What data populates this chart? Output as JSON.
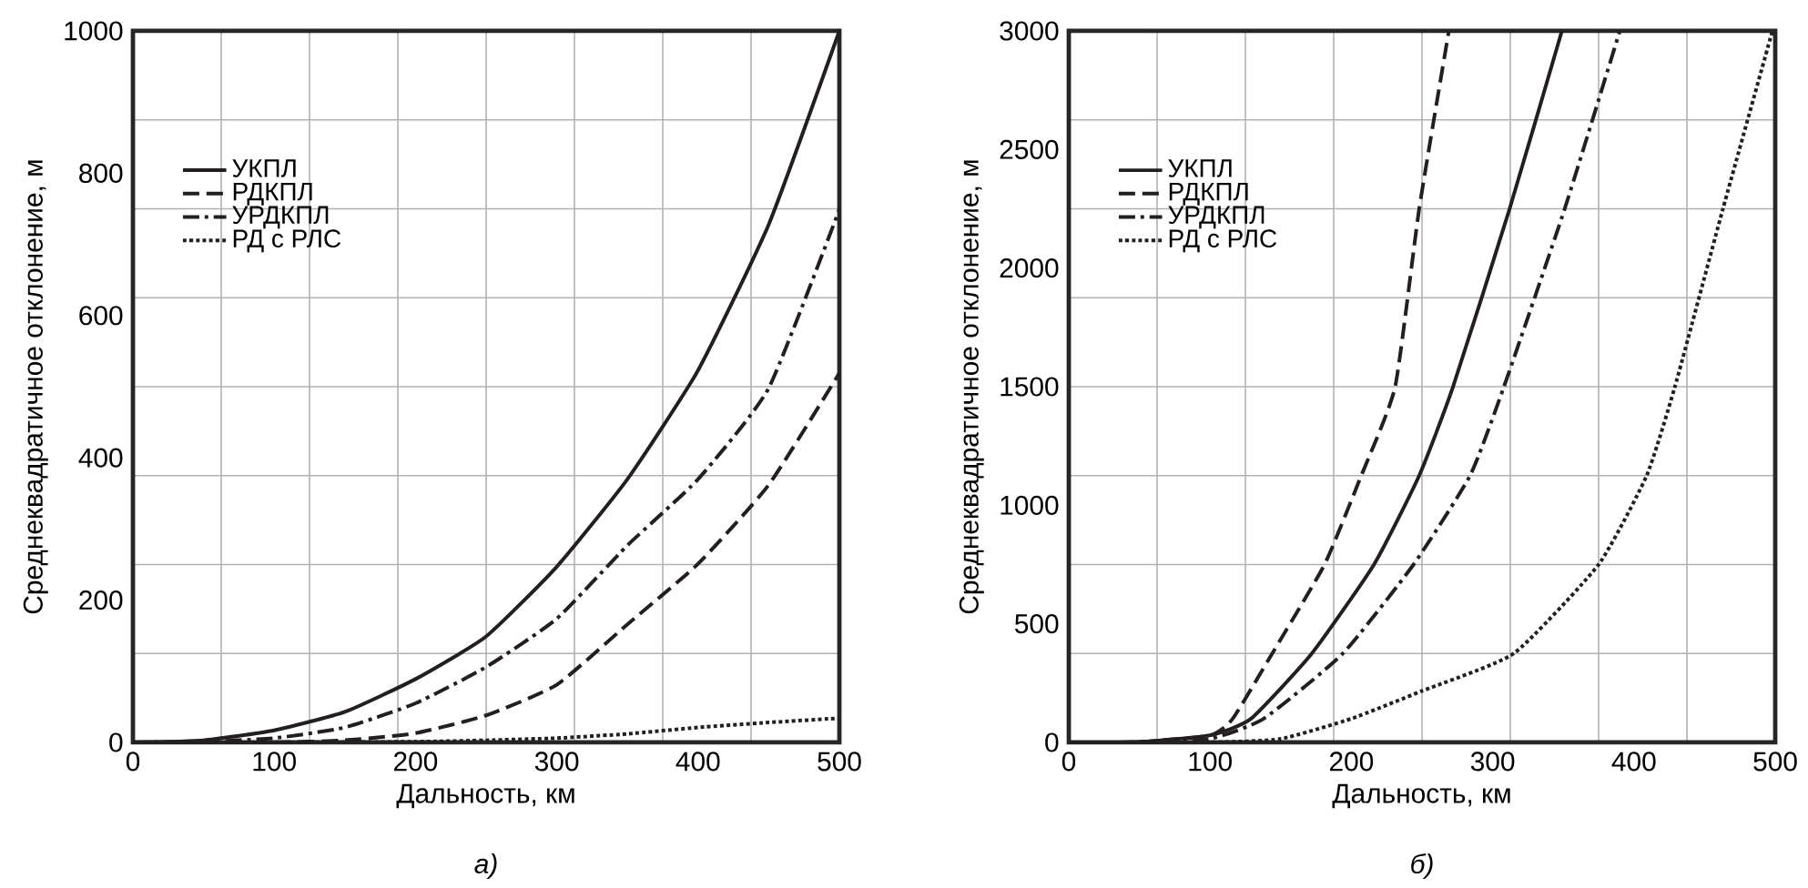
{
  "chart_data": [
    {
      "type": "line",
      "xlabel": "Дальность, км",
      "ylabel": "Среднеквадратичное отклонение, м",
      "annotations": [
        "а)"
      ],
      "xlim": [
        0,
        500
      ],
      "ylim": [
        0,
        1000
      ],
      "xticks": [
        0,
        100,
        200,
        300,
        400,
        500,
        {
          "value": 62.5,
          "label": null
        },
        {
          "value": 125,
          "label": null
        },
        {
          "value": 187.5,
          "label": null
        },
        {
          "value": 250,
          "label": null
        },
        {
          "value": 312.5,
          "label": null
        },
        {
          "value": 375,
          "label": null
        },
        {
          "value": 437.5,
          "label": null
        }
      ],
      "yticks": [
        0,
        200,
        400,
        600,
        800,
        1000,
        {
          "value": 125,
          "label": null
        },
        {
          "value": 250,
          "label": null
        },
        {
          "value": 375,
          "label": null
        },
        {
          "value": 500,
          "label": null
        },
        {
          "value": 625,
          "label": null
        },
        {
          "value": 750,
          "label": null
        },
        {
          "value": 875,
          "label": null
        }
      ],
      "grid": true,
      "legend": "top left",
      "series": [
        {
          "name": "УКПЛ",
          "color": "#231f20",
          "line_style": "solid",
          "x": [
            0,
            50,
            100,
            150,
            200,
            250,
            300,
            350,
            400,
            450,
            500
          ],
          "values": [
            0,
            3,
            17,
            43,
            89,
            149,
            247,
            370,
            523,
            728,
            1000
          ]
        },
        {
          "name": "РДКПЛ",
          "color": "#231f20",
          "line_style": "dashed",
          "x": [
            0,
            50,
            100,
            150,
            200,
            250,
            300,
            350,
            400,
            450,
            500
          ],
          "values": [
            0,
            0,
            0,
            3,
            13,
            38,
            81,
            166,
            251,
            362,
            519
          ]
        },
        {
          "name": "УРДКПЛ",
          "color": "#231f20",
          "line_style": "dashdot",
          "x": [
            0,
            50,
            100,
            150,
            200,
            250,
            300,
            350,
            400,
            450,
            500
          ],
          "values": [
            0,
            1,
            6,
            21,
            55,
            106,
            174,
            277,
            370,
            498,
            749
          ]
        },
        {
          "name": "РД с РЛС",
          "color": "#231f20",
          "line_style": "dotted",
          "x": [
            0,
            100,
            200,
            250,
            300,
            350,
            400,
            450,
            500
          ],
          "values": [
            0,
            0,
            1,
            3,
            6,
            12,
            21,
            28,
            34
          ]
        }
      ]
    },
    {
      "type": "line",
      "xlabel": "Дальность, км",
      "ylabel": "Среднеквадратичное отклонение, м",
      "annotations": [
        "б)"
      ],
      "xlim": [
        0,
        500
      ],
      "ylim": [
        0,
        3000
      ],
      "xticks": [
        0,
        100,
        200,
        300,
        400,
        500,
        {
          "value": 62.5,
          "label": null
        },
        {
          "value": 125,
          "label": null
        },
        {
          "value": 187.5,
          "label": null
        },
        {
          "value": 250,
          "label": null
        },
        {
          "value": 312.5,
          "label": null
        },
        {
          "value": 375,
          "label": null
        },
        {
          "value": 437.5,
          "label": null
        }
      ],
      "yticks": [
        0,
        500,
        1000,
        1500,
        2000,
        2500,
        3000,
        {
          "value": 375,
          "label": null
        },
        {
          "value": 750,
          "label": null
        },
        {
          "value": 1125,
          "label": null
        },
        {
          "value": 1500,
          "label": null
        },
        {
          "value": 1875,
          "label": null
        },
        {
          "value": 2250,
          "label": null
        },
        {
          "value": 2625,
          "label": null
        }
      ],
      "grid": true,
      "legend": "top left",
      "series": [
        {
          "name": "УКПЛ",
          "color": "#231f20",
          "line_style": "solid",
          "x": [
            0,
            50,
            100,
            129,
            172,
            216,
            248,
            272,
            312,
            349
          ],
          "values": [
            0,
            2,
            30,
            100,
            375,
            750,
            1125,
            1500,
            2250,
            3000
          ]
        },
        {
          "name": "РДКПЛ",
          "color": "#231f20",
          "line_style": "dashed",
          "x": [
            0,
            50,
            100,
            116,
            144,
            181,
            207,
            231,
            248,
            269
          ],
          "values": [
            0,
            2,
            30,
            100,
            375,
            750,
            1125,
            1500,
            2250,
            3000
          ]
        },
        {
          "name": "УРДКПЛ",
          "color": "#231f20",
          "line_style": "dashdot",
          "x": [
            0,
            50,
            100,
            138,
            194,
            244,
            284,
            308,
            351,
            390
          ],
          "values": [
            0,
            1,
            15,
            100,
            375,
            750,
            1125,
            1500,
            2250,
            3000
          ]
        },
        {
          "name": "РД с РЛС",
          "color": "#231f20",
          "line_style": "dotted",
          "x": [
            0,
            100,
            150,
            200,
            250,
            315,
            375,
            409,
            429,
            463,
            498
          ],
          "values": [
            0,
            0,
            15,
            100,
            217,
            375,
            750,
            1125,
            1500,
            2250,
            3000
          ]
        }
      ]
    }
  ]
}
